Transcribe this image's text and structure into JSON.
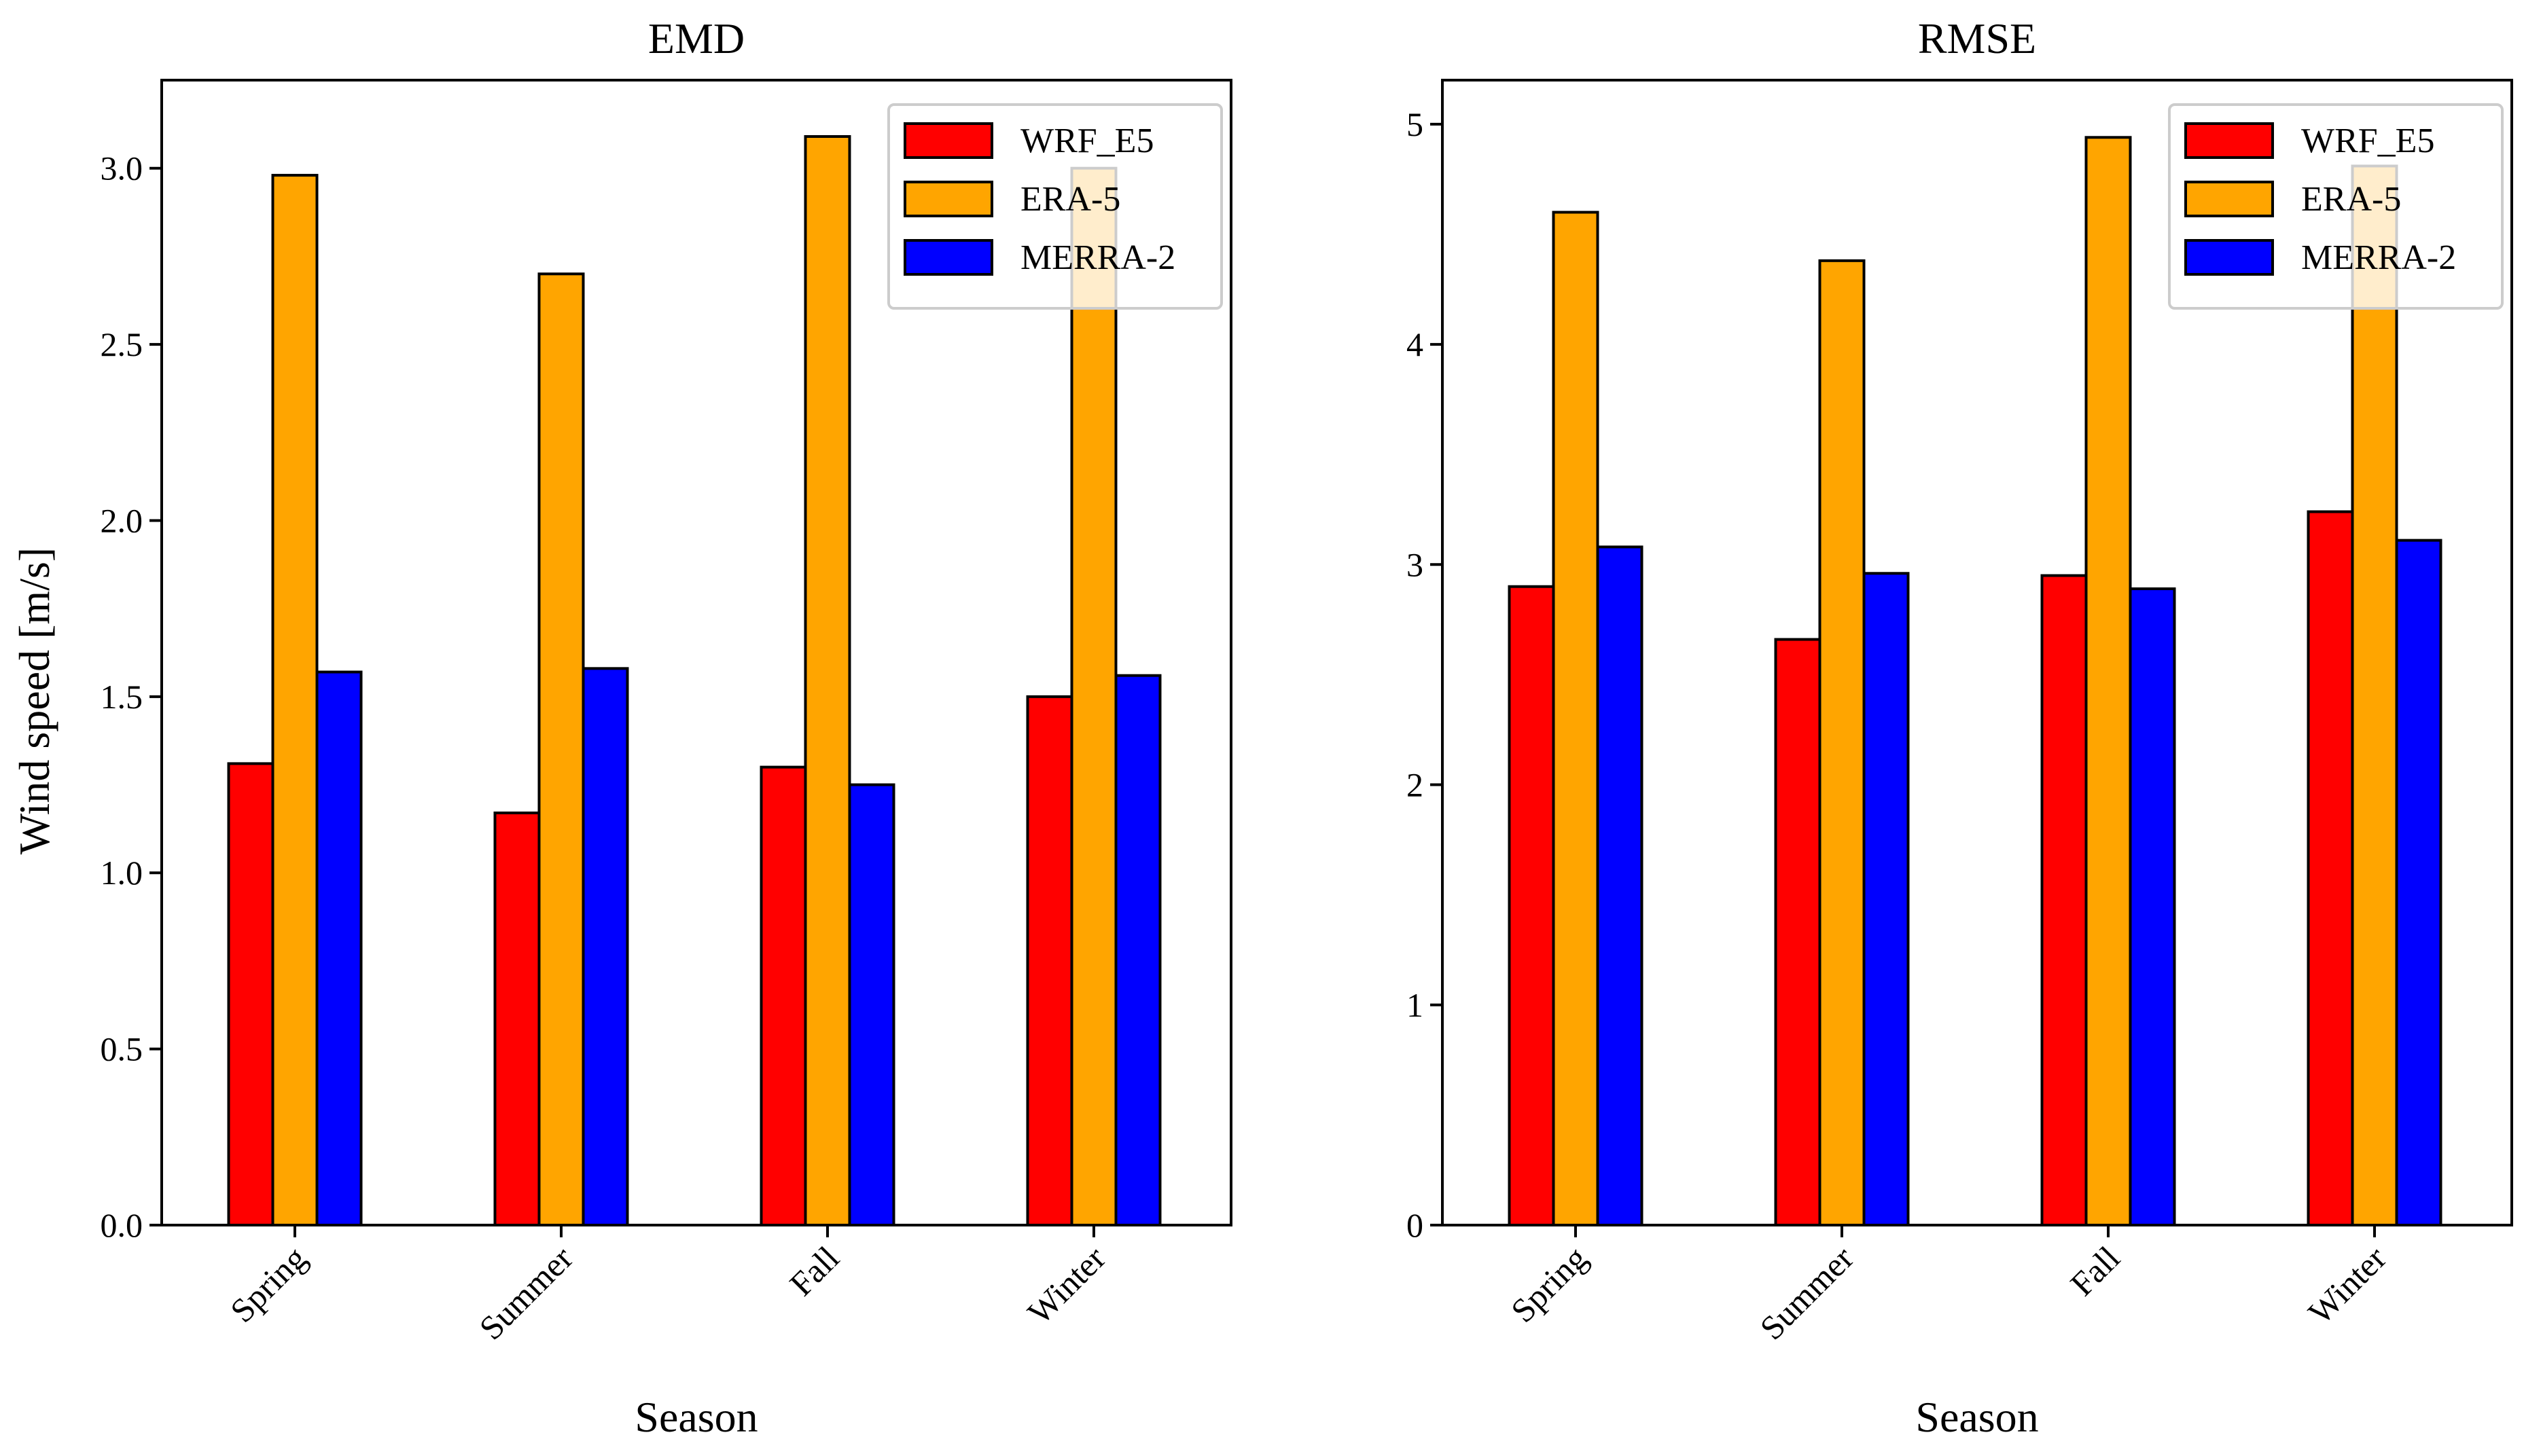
{
  "figure": {
    "ylabel": "Wind speed [m/s]",
    "xlabel": "Season"
  },
  "chart_data": [
    {
      "type": "bar",
      "title": "EMD",
      "xlabel": "Season",
      "ylabel": "Wind speed [m/s]",
      "categories": [
        "Spring",
        "Summer",
        "Fall",
        "Winter"
      ],
      "ylim": [
        0,
        3.25
      ],
      "yticks": [
        0.0,
        0.5,
        1.0,
        1.5,
        2.0,
        2.5,
        3.0
      ],
      "ytick_labels": [
        "0.0",
        "0.5",
        "1.0",
        "1.5",
        "2.0",
        "2.5",
        "3.0"
      ],
      "legend_position": "top-right",
      "series": [
        {
          "name": "WRF_E5",
          "color": "#ff0000",
          "values": [
            1.31,
            1.17,
            1.3,
            1.5
          ]
        },
        {
          "name": "ERA-5",
          "color": "#ffa500",
          "values": [
            2.98,
            2.7,
            3.09,
            3.0
          ]
        },
        {
          "name": "MERRA-2",
          "color": "#0000ff",
          "values": [
            1.57,
            1.58,
            1.25,
            1.56
          ]
        }
      ]
    },
    {
      "type": "bar",
      "title": "RMSE",
      "xlabel": "Season",
      "ylabel": "",
      "categories": [
        "Spring",
        "Summer",
        "Fall",
        "Winter"
      ],
      "ylim": [
        0,
        5.2
      ],
      "yticks": [
        0,
        1,
        2,
        3,
        4,
        5
      ],
      "ytick_labels": [
        "0",
        "1",
        "2",
        "3",
        "4",
        "5"
      ],
      "legend_position": "top-right",
      "series": [
        {
          "name": "WRF_E5",
          "color": "#ff0000",
          "values": [
            2.9,
            2.66,
            2.95,
            3.24
          ]
        },
        {
          "name": "ERA-5",
          "color": "#ffa500",
          "values": [
            4.6,
            4.38,
            4.94,
            4.81
          ]
        },
        {
          "name": "MERRA-2",
          "color": "#0000ff",
          "values": [
            3.08,
            2.96,
            2.89,
            3.11
          ]
        }
      ]
    }
  ]
}
